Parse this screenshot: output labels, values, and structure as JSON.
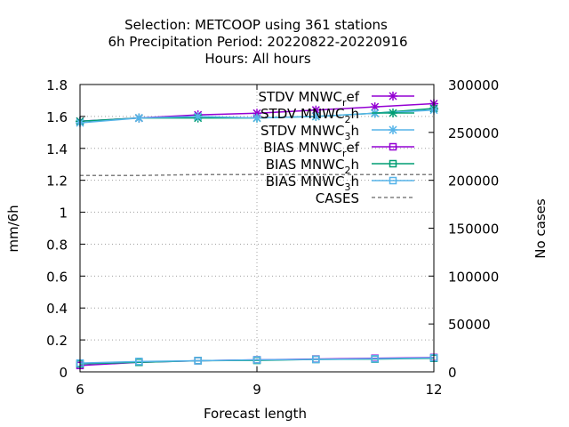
{
  "chart_data": {
    "type": "line",
    "title_lines": [
      "Selection: METCOOP using   361 stations",
      "6h Precipitation   Period: 20220822-20220916",
      "Hours:  All hours"
    ],
    "xlabel": "Forecast length",
    "ylabel": "mm/6h",
    "y2label": "No cases",
    "xlim": [
      6,
      12
    ],
    "ylim": [
      0,
      1.8
    ],
    "y2lim": [
      0,
      300000
    ],
    "xticks": [
      "6",
      "9",
      "12"
    ],
    "yticks": [
      "0",
      "0.2",
      "0.4",
      "0.6",
      "0.8",
      "1",
      "1.2",
      "1.4",
      "1.6",
      "1.8"
    ],
    "y2ticks": [
      "0",
      "50000",
      "100000",
      "150000",
      "200000",
      "250000",
      "300000"
    ],
    "grid": true,
    "legend_position": "top-right",
    "series": [
      {
        "name": "STDV MNWC_ref",
        "legend_main": "STDV MNWC",
        "legend_sub": "r",
        "legend_tail": "ef",
        "color": "#9400d3",
        "marker": "x",
        "axis": "y1",
        "x": [
          6,
          7,
          8,
          9,
          10,
          11,
          12
        ],
        "y": [
          1.57,
          1.59,
          1.61,
          1.62,
          1.64,
          1.66,
          1.68
        ]
      },
      {
        "name": "STDV MNWC_2h",
        "legend_main": "STDV MNWC",
        "legend_sub": "2",
        "legend_tail": "h",
        "color": "#009e73",
        "marker": "x",
        "axis": "y1",
        "x": [
          6,
          7,
          8,
          9,
          10,
          11,
          12
        ],
        "y": [
          1.57,
          1.59,
          1.59,
          1.59,
          1.6,
          1.62,
          1.65
        ]
      },
      {
        "name": "STDV MNWC_3h",
        "legend_main": "STDV MNWC",
        "legend_sub": "3",
        "legend_tail": "h",
        "color": "#56b4e9",
        "marker": "x",
        "axis": "y1",
        "x": [
          6,
          7,
          8,
          9,
          10,
          11,
          12
        ],
        "y": [
          1.56,
          1.59,
          1.6,
          1.59,
          1.6,
          1.62,
          1.64
        ]
      },
      {
        "name": "BIAS MNWC_ref",
        "legend_main": "BIAS MNWC",
        "legend_sub": "r",
        "legend_tail": "ef",
        "color": "#9400d3",
        "marker": "square",
        "axis": "y1",
        "x": [
          6,
          7,
          8,
          9,
          10,
          11,
          12
        ],
        "y": [
          0.04,
          0.06,
          0.07,
          0.075,
          0.08,
          0.085,
          0.09
        ]
      },
      {
        "name": "BIAS MNWC_2h",
        "legend_main": "BIAS MNWC",
        "legend_sub": "2",
        "legend_tail": "h",
        "color": "#009e73",
        "marker": "square",
        "axis": "y1",
        "x": [
          6,
          7,
          8,
          9,
          10,
          11,
          12
        ],
        "y": [
          0.05,
          0.06,
          0.07,
          0.072,
          0.078,
          0.08,
          0.085
        ]
      },
      {
        "name": "BIAS MNWC_3h",
        "legend_main": "BIAS MNWC",
        "legend_sub": "3",
        "legend_tail": "h",
        "color": "#56b4e9",
        "marker": "square",
        "axis": "y1",
        "x": [
          6,
          7,
          8,
          9,
          10,
          11,
          12
        ],
        "y": [
          0.055,
          0.065,
          0.07,
          0.075,
          0.078,
          0.082,
          0.088
        ]
      },
      {
        "name": "CASES",
        "legend_main": "CASES",
        "legend_sub": "",
        "legend_tail": "",
        "color": "#808080",
        "marker": "none",
        "dashed": true,
        "axis": "y2",
        "x": [
          6,
          7,
          8,
          9,
          10,
          11,
          12
        ],
        "y": [
          205000,
          205000,
          206000,
          206000,
          206000,
          206000,
          206000
        ]
      }
    ]
  }
}
